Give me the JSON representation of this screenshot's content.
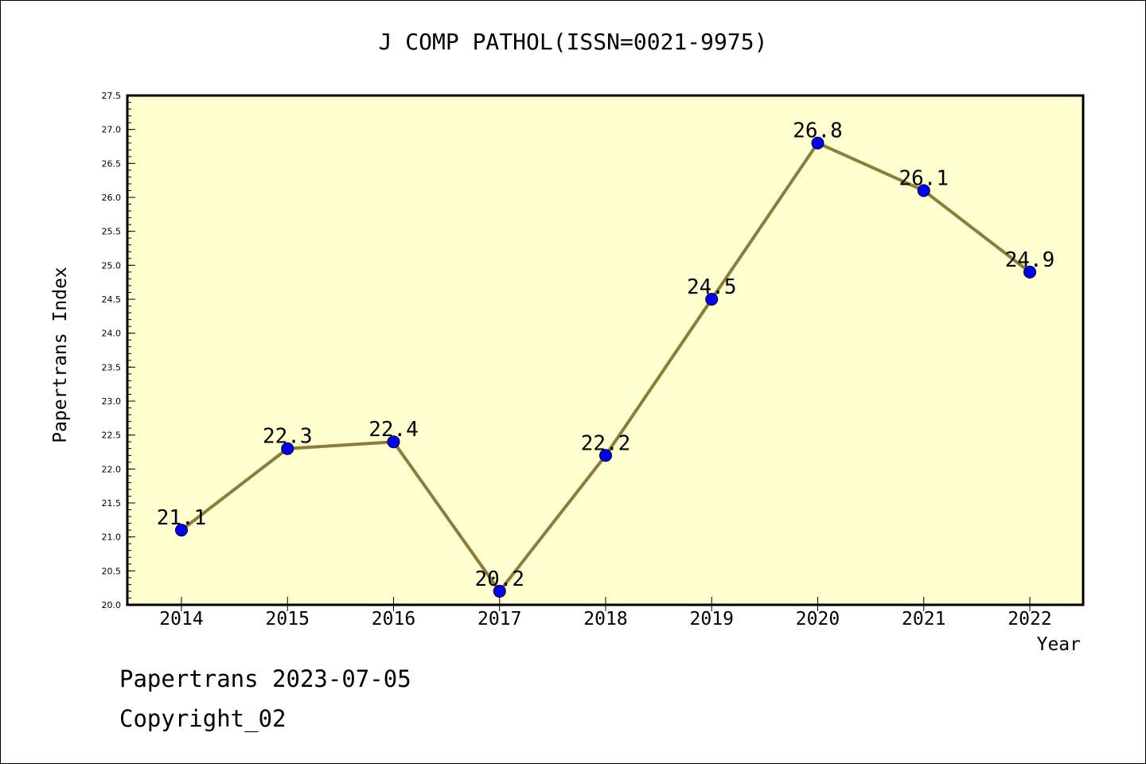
{
  "chart_data": {
    "type": "line",
    "title": "J COMP PATHOL(ISSN=0021-9975)",
    "xlabel": "Year",
    "ylabel": "Papertrans Index",
    "categories": [
      "2014",
      "2015",
      "2016",
      "2017",
      "2018",
      "2019",
      "2020",
      "2021",
      "2022"
    ],
    "series": [
      {
        "values": [
          21.1,
          22.3,
          22.4,
          20.2,
          22.2,
          24.5,
          26.8,
          26.1,
          24.9
        ]
      }
    ],
    "data_labels": [
      "21.1",
      "22.3",
      "22.4",
      "20.2",
      "22.2",
      "24.5",
      "26.8",
      "26.1",
      "24.9"
    ],
    "ylim": [
      20.0,
      27.5
    ],
    "yticks": [
      "20.0",
      "20.5",
      "21.0",
      "21.5",
      "22.0",
      "22.5",
      "23.0",
      "23.5",
      "24.0",
      "24.5",
      "25.0",
      "25.5",
      "26.0",
      "26.5",
      "27.0",
      "27.5"
    ],
    "grid": false,
    "colors": {
      "background": "#ffffd0",
      "line": "#8b7d3a",
      "marker": "#0000ff"
    }
  },
  "footer": {
    "line1": "Papertrans 2023-07-05",
    "line2": "Copyright_02"
  }
}
